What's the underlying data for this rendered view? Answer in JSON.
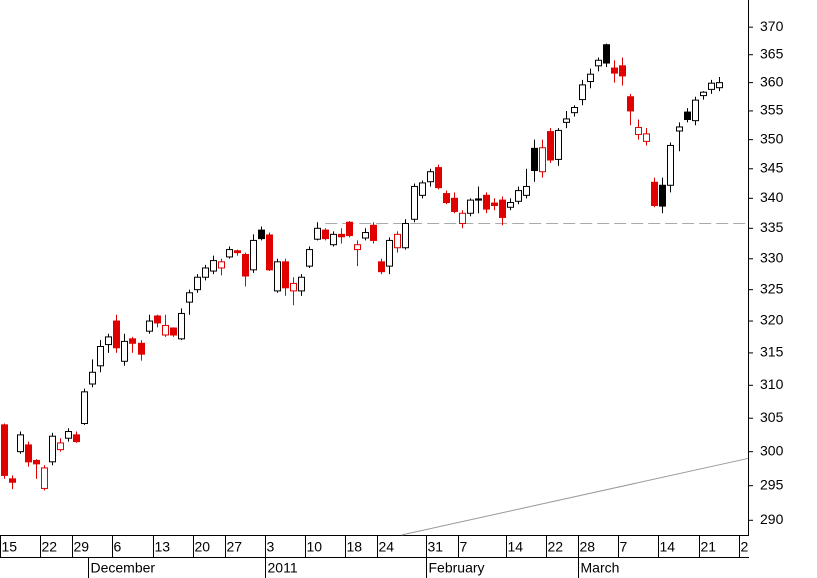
{
  "chart_data": {
    "type": "candlestick",
    "log_scale": true,
    "ylim": [
      287.9,
      375
    ],
    "yticks": [
      290,
      295,
      300,
      305,
      310,
      315,
      320,
      325,
      330,
      335,
      340,
      345,
      350,
      355,
      360,
      365,
      370
    ],
    "xticks": [
      {
        "value": 0,
        "label": "15"
      },
      {
        "value": 5,
        "label": "22"
      },
      {
        "value": 9,
        "label": "29"
      },
      {
        "value": 14,
        "label": "6"
      },
      {
        "value": 19,
        "label": "13"
      },
      {
        "value": 24,
        "label": "20"
      },
      {
        "value": 28,
        "label": "27"
      },
      {
        "value": 33,
        "label": "3"
      },
      {
        "value": 38,
        "label": "10"
      },
      {
        "value": 43,
        "label": "18"
      },
      {
        "value": 47,
        "label": "24"
      },
      {
        "value": 53,
        "label": "31"
      },
      {
        "value": 57,
        "label": "7"
      },
      {
        "value": 63,
        "label": "14"
      },
      {
        "value": 68,
        "label": "22"
      },
      {
        "value": 72,
        "label": "28"
      },
      {
        "value": 77,
        "label": "7"
      },
      {
        "value": 82,
        "label": "14"
      },
      {
        "value": 87,
        "label": "21"
      },
      {
        "value": 92,
        "label": "2"
      }
    ],
    "months": [
      {
        "value": 11,
        "label": "December"
      },
      {
        "value": 33,
        "label": "2011"
      },
      {
        "value": 53,
        "label": "February"
      },
      {
        "value": 72,
        "label": "March"
      }
    ],
    "open": [
      304,
      296,
      300,
      301,
      298.7,
      294.6,
      298.5,
      300.3,
      302,
      302.5,
      304.2,
      310.2,
      313,
      316.3,
      320,
      313.7,
      317.2,
      316.5,
      318.4,
      320.8,
      317.8,
      318.9,
      317.2,
      323,
      325,
      327,
      328,
      328.5,
      330.3,
      331.3,
      330.7,
      328.2,
      334.7,
      333.9,
      324.8,
      329.5,
      324.8,
      324.8,
      328.8,
      333.2,
      334.7,
      332.3,
      334,
      336,
      331.5,
      333.4,
      335.5,
      329.5,
      328.8,
      331.8,
      331.8,
      336.5,
      340.5,
      342.8,
      345.2,
      340.8,
      340,
      335.8,
      337.5,
      339.9,
      340.5,
      339.2,
      339.7,
      338.5,
      339.5,
      340.5,
      348.5,
      344.5,
      351.4,
      346.6,
      353,
      354.7,
      357,
      360.2,
      363,
      366.8,
      362.6,
      363,
      357.5,
      350.9,
      349.7,
      342.7,
      342.2,
      342.2,
      351.5,
      354.8,
      353.3,
      357.7,
      358.8,
      359.1
    ],
    "high": [
      304.2,
      296.5,
      303,
      301.5,
      298.9,
      298,
      302.8,
      302,
      303.5,
      303,
      309.5,
      314,
      317,
      318,
      321,
      318,
      317.5,
      317,
      321,
      321,
      321,
      319,
      322,
      325,
      327.5,
      329,
      330.5,
      330,
      332,
      331.5,
      331,
      334,
      335.3,
      334.3,
      330,
      330,
      327,
      327.5,
      332,
      336,
      335,
      334.5,
      335,
      336.2,
      333,
      335,
      336,
      330,
      333.5,
      334.5,
      336.5,
      342.5,
      343,
      345,
      345.7,
      341.3,
      341,
      338,
      340,
      342,
      341,
      340,
      340.3,
      340,
      342,
      345,
      350,
      350,
      352,
      352,
      355,
      356,
      360.5,
      362.5,
      364.5,
      367,
      364,
      364.5,
      358,
      353.5,
      352,
      343.5,
      343.5,
      349.5,
      353,
      355.5,
      357.5,
      358.5,
      360.5,
      361
    ],
    "low": [
      296,
      294.5,
      299.7,
      297.8,
      296,
      294.3,
      298,
      300,
      301.5,
      301.3,
      304,
      309.7,
      312,
      315,
      315,
      313,
      315,
      313.8,
      318,
      319,
      317.5,
      317.5,
      317,
      321,
      324.5,
      326.5,
      327.5,
      327.3,
      330,
      330.5,
      325.5,
      327.7,
      333,
      328,
      324.5,
      324,
      322.5,
      324,
      328.5,
      333,
      333,
      332,
      332.5,
      333.5,
      328.8,
      333,
      332.5,
      327.5,
      327.5,
      331,
      331.5,
      336,
      340,
      342,
      341.5,
      339,
      337.5,
      335,
      337,
      337.5,
      337.5,
      338,
      335.5,
      338,
      339,
      340,
      342.8,
      343.5,
      346,
      345.5,
      352,
      354,
      356,
      359,
      362,
      362.8,
      360,
      359.5,
      352.5,
      350,
      349,
      338.5,
      337.5,
      341,
      348,
      353,
      352.5,
      357,
      358,
      358.5
    ],
    "close": [
      296.5,
      295.5,
      302.5,
      298.5,
      298.2,
      297.6,
      302.3,
      301.3,
      303,
      301.5,
      309,
      312,
      316,
      317.5,
      315.8,
      316.8,
      316.5,
      314.8,
      320,
      319.7,
      319.3,
      317.8,
      321.2,
      324.5,
      327,
      328.5,
      329.7,
      329.5,
      331.5,
      331,
      327.2,
      333,
      333.3,
      328.2,
      329.5,
      325.3,
      326,
      327,
      331.5,
      335,
      333.3,
      334,
      333.6,
      333.8,
      332.3,
      334.3,
      333,
      327.9,
      333,
      334,
      335.8,
      342,
      342.6,
      344.5,
      341.8,
      339.3,
      337.8,
      337.5,
      339.7,
      339.7,
      338.2,
      338.8,
      336.8,
      339.3,
      341.3,
      342,
      344.7,
      348.6,
      346.5,
      351.6,
      353.6,
      355.6,
      359.6,
      361.5,
      364,
      363.5,
      361.7,
      361.2,
      355,
      352.1,
      351,
      338.8,
      338.7,
      349,
      352.2,
      353.5,
      356.9,
      358.3,
      359.9,
      360
    ],
    "colors": [
      "#e00000",
      "#e00000",
      "#000000",
      "#e00000",
      "#e00000",
      "#e00000",
      "#000000",
      "#e00000",
      "#000000",
      "#e00000",
      "#000000",
      "#000000",
      "#000000",
      "#000000",
      "#e00000",
      "#000000",
      "#e00000",
      "#e00000",
      "#000000",
      "#e00000",
      "#e00000",
      "#e00000",
      "#000000",
      "#000000",
      "#000000",
      "#000000",
      "#000000",
      "#e00000",
      "#000000",
      "#e00000",
      "#e00000",
      "#000000",
      "#000000",
      "#e00000",
      "#000000",
      "#e00000",
      "#e00000",
      "#000000",
      "#000000",
      "#000000",
      "#e00000",
      "#000000",
      "#e00000",
      "#e00000",
      "#e00000",
      "#000000",
      "#e00000",
      "#e00000",
      "#000000",
      "#e00000",
      "#000000",
      "#000000",
      "#000000",
      "#000000",
      "#e00000",
      "#e00000",
      "#e00000",
      "#e00000",
      "#000000",
      "#000000",
      "#e00000",
      "#e00000",
      "#e00000",
      "#000000",
      "#000000",
      "#000000",
      "#000000",
      "#e00000",
      "#e00000",
      "#000000",
      "#000000",
      "#000000",
      "#000000",
      "#000000",
      "#000000",
      "#000000",
      "#e00000",
      "#e00000",
      "#e00000",
      "#e00000",
      "#e00000",
      "#e00000",
      "#000000",
      "#000000",
      "#000000",
      "#000000",
      "#000000",
      "#000000",
      "#000000",
      "#000000"
    ],
    "hline": {
      "value": 335.8,
      "from": 40,
      "color": "#aaaaaa"
    },
    "trendline": {
      "x": [
        49.5,
        93
      ],
      "y": [
        287.9,
        299
      ],
      "color": "#999999"
    }
  }
}
